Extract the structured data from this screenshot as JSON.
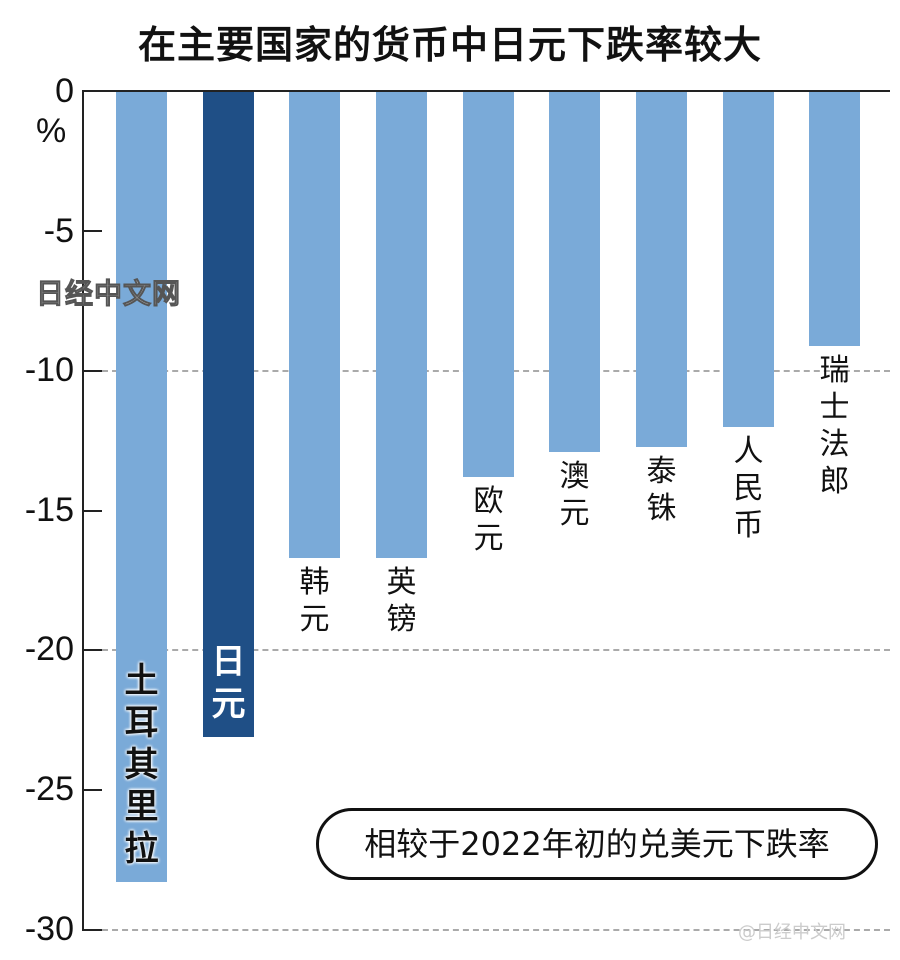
{
  "header": {
    "title": "在主要国家的货币中日元下跌率较大"
  },
  "axis": {
    "unit": "%",
    "ticks": [
      "0",
      "-5",
      "-10",
      "-15",
      "-20",
      "-25",
      "-30"
    ]
  },
  "note": {
    "text": "相较于2022年初的兑美元下跌率"
  },
  "watermarks": {
    "top": "日经中文网",
    "bottom": "@日经中文网"
  },
  "colors": {
    "default_bar": "#7aaad8",
    "highlight_bar": "#1f4f86",
    "axis": "#222222"
  },
  "chart_data": {
    "type": "bar",
    "title": "在主要国家的货币中日元下跌率较大",
    "subtitle": "相较于2022年初的兑美元下跌率",
    "xlabel": "",
    "ylabel": "%",
    "ylim": [
      -30,
      0
    ],
    "yticks": [
      0,
      -5,
      -10,
      -15,
      -20,
      -25,
      -30
    ],
    "grid": "dashed at -10, -20, -30",
    "categories": [
      "土耳其里拉",
      "日元",
      "韩元",
      "英镑",
      "欧元",
      "澳元",
      "泰铢",
      "人民币",
      "瑞士法郎"
    ],
    "values": [
      -28.3,
      -23.1,
      -16.7,
      -16.7,
      -13.8,
      -12.9,
      -12.7,
      -12.0,
      -9.1
    ],
    "highlight": "日元"
  },
  "bars": [
    {
      "label": "土耳其里拉",
      "value": -28.3,
      "inside": true
    },
    {
      "label": "日元",
      "value": -23.1,
      "inside": true,
      "highlight": true
    },
    {
      "label": "韩元",
      "value": -16.7
    },
    {
      "label": "英镑",
      "value": -16.7
    },
    {
      "label": "欧元",
      "value": -13.8
    },
    {
      "label": "澳元",
      "value": -12.9
    },
    {
      "label": "泰铢",
      "value": -12.7
    },
    {
      "label": "人民币",
      "value": -12.0
    },
    {
      "label": "瑞士法郎",
      "value": -9.1
    }
  ]
}
